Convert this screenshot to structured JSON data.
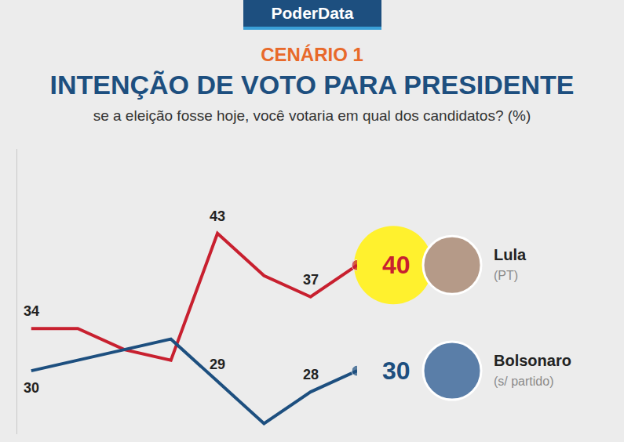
{
  "header": "PoderData",
  "chart_data": {
    "type": "line",
    "supertitle": "CENÁRIO 1",
    "title": "INTENÇÃO DE VOTO PARA PRESIDENTE",
    "subtitle": "se a eleição fosse hoje, você votaria em qual dos candidatos? (%)",
    "categories": [
      null,
      null,
      null,
      null,
      null,
      null,
      null,
      null
    ],
    "series": [
      {
        "name": "Lula",
        "party": "(PT)",
        "color": "#c8202f",
        "values": [
          34,
          34,
          32,
          31,
          43,
          39,
          37,
          40
        ],
        "value_labels": [
          "34",
          null,
          null,
          null,
          "43",
          null,
          "37",
          "40"
        ]
      },
      {
        "name": "Bolsonaro",
        "party": "(s/ partido)",
        "color": "#1d4f7f",
        "values": [
          30,
          31,
          32,
          33,
          29,
          25,
          28,
          30
        ],
        "value_labels": [
          "30",
          null,
          null,
          null,
          "29",
          null,
          "28",
          "30"
        ]
      }
    ],
    "ylim": [
      24,
      51
    ],
    "yticks": [],
    "grid": false,
    "data_labels": true,
    "tick_labels": false
  }
}
